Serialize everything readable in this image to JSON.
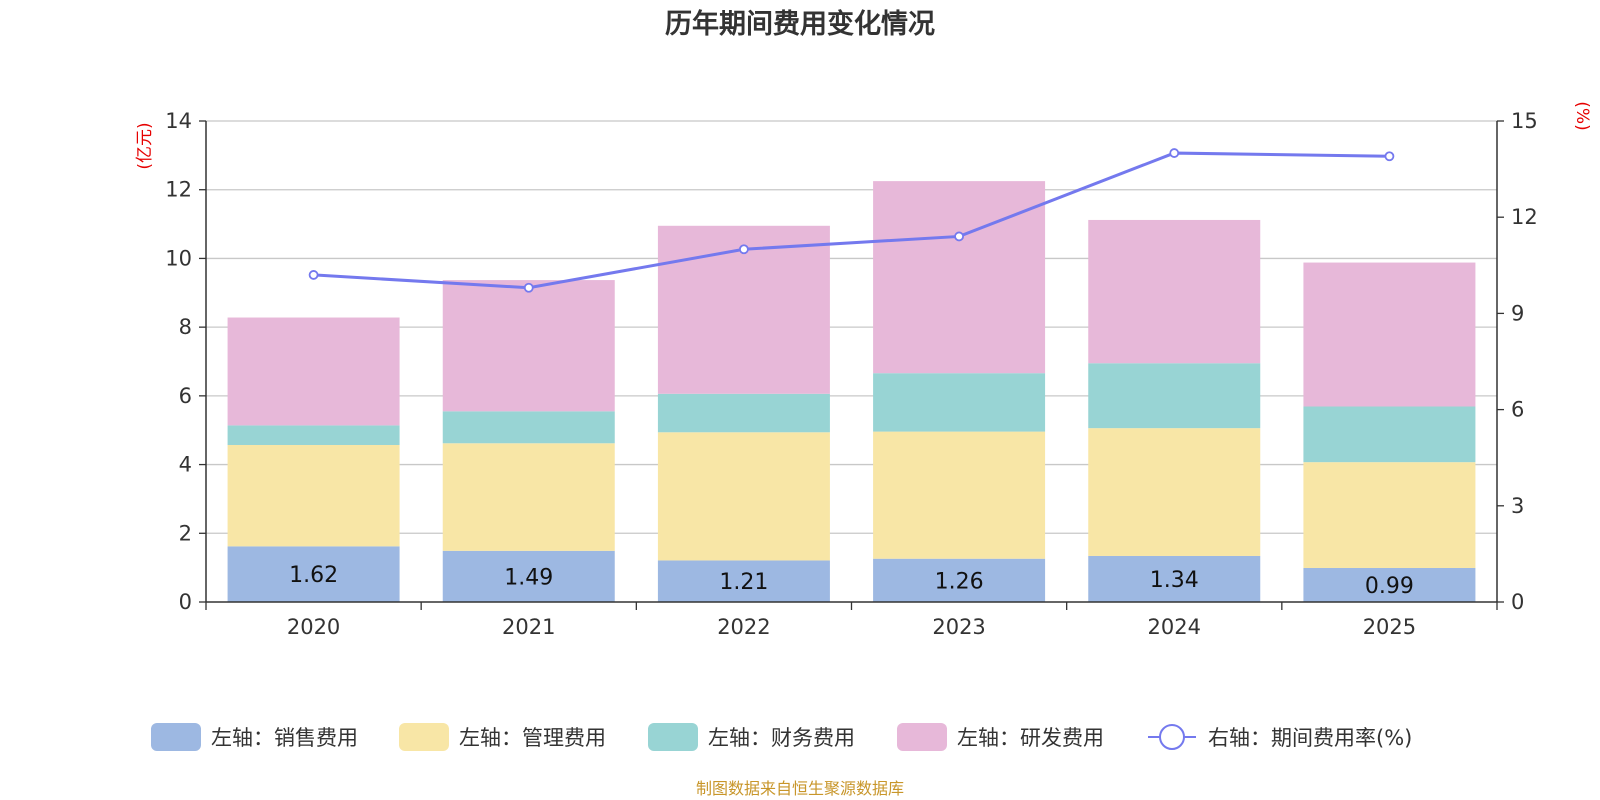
{
  "chart_data": {
    "type": "bar",
    "title": "历年期间费用变化情况",
    "left_unit": "(亿元)",
    "right_unit": "(%)",
    "categories": [
      "2020",
      "2021",
      "2022",
      "2023",
      "2024",
      "2025"
    ],
    "left_axis": {
      "ylim": [
        0,
        14
      ],
      "ticks": [
        "0",
        "2",
        "4",
        "6",
        "8",
        "10",
        "12",
        "14"
      ]
    },
    "right_axis": {
      "ylim": [
        0,
        15
      ],
      "ticks": [
        "0",
        "3",
        "6",
        "9",
        "12",
        "15"
      ]
    },
    "series": [
      {
        "name": "左轴：销售费用",
        "axis": "left",
        "stack": true,
        "color": "#9db8e2",
        "values": [
          1.62,
          1.49,
          1.21,
          1.26,
          1.34,
          0.99
        ],
        "labels": [
          "1.62",
          "1.49",
          "1.21",
          "1.26",
          "1.34",
          "0.99"
        ]
      },
      {
        "name": "左轴：管理费用",
        "axis": "left",
        "stack": true,
        "color": "#f8e6a6",
        "values": [
          2.95,
          3.13,
          3.73,
          3.7,
          3.72,
          3.08
        ]
      },
      {
        "name": "左轴：财务费用",
        "axis": "left",
        "stack": true,
        "color": "#98d4d4",
        "values": [
          0.57,
          0.93,
          1.12,
          1.7,
          1.89,
          1.62
        ]
      },
      {
        "name": "左轴：研发费用",
        "axis": "left",
        "stack": true,
        "color": "#e7b8d9",
        "values": [
          3.14,
          3.82,
          4.89,
          5.59,
          4.17,
          4.19
        ]
      },
      {
        "name": "右轴：期间费用率(%)",
        "axis": "right",
        "type": "line",
        "color": "#7479ee",
        "values": [
          10.2,
          9.8,
          11.0,
          11.4,
          14.0,
          13.9
        ]
      }
    ],
    "grid": true,
    "legend_position": "bottom"
  },
  "footer": {
    "source": "制图数据来自恒生聚源数据库"
  }
}
